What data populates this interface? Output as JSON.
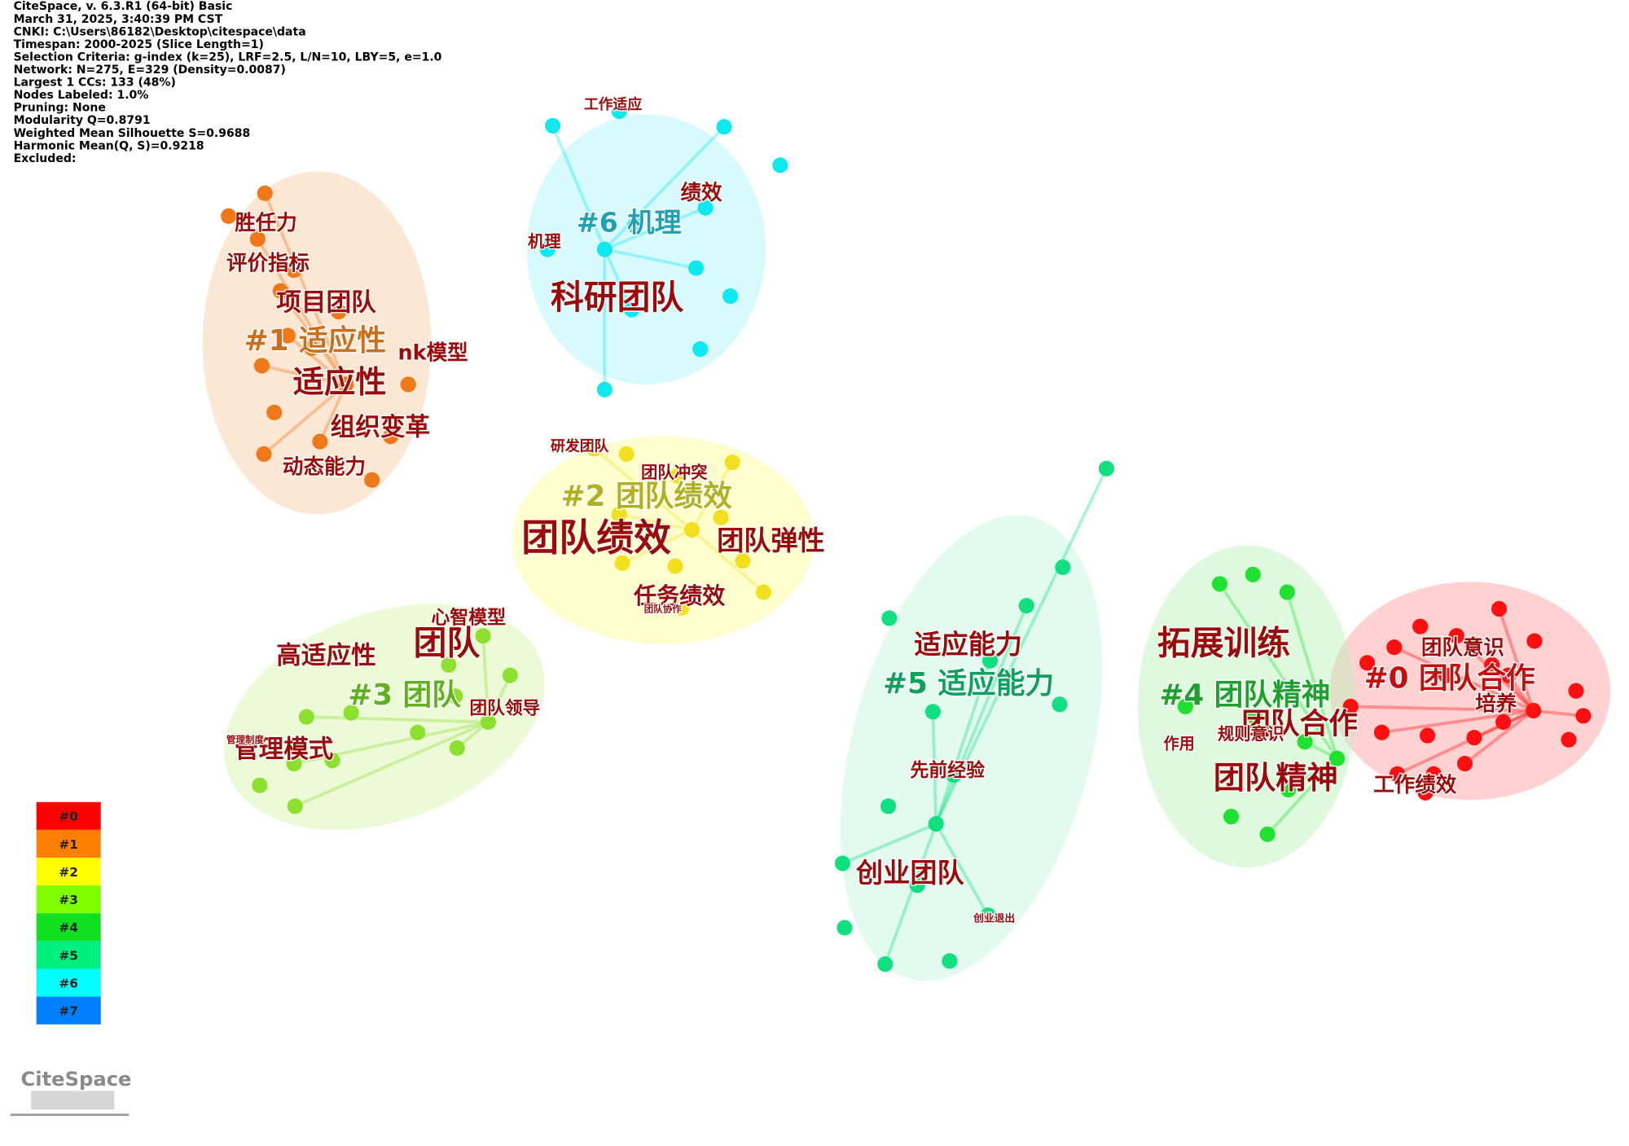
{
  "info": [
    "CiteSpace, v. 6.3.R1 (64-bit) Basic",
    "March 31, 2025, 3:40:39 PM CST",
    "CNKI: C:\\Users\\86182\\Desktop\\citespace\\data",
    "Timespan: 2000-2025 (Slice Length=1)",
    "Selection Criteria: g-index (k=25), LRF=2.5, L/N=10, LBY=5, e=1.0",
    "Network: N=275, E=329 (Density=0.0087)",
    "Largest 1 CCs: 133 (48%)",
    "Nodes Labeled: 1.0%",
    "Pruning: None",
    "Modularity Q=0.8791",
    "Weighted Mean Silhouette S=0.9688",
    "Harmonic Mean(Q, S)=0.9218",
    "Excluded:"
  ],
  "clusters": [
    {
      "label": "#0 团队合作",
      "keywords": [
        "团队意识",
        "培养",
        "工作绩效"
      ]
    },
    {
      "label": "#1 适应性",
      "keywords": [
        "胜任力",
        "评价指标",
        "项目团队",
        "nk模型",
        "适应性",
        "组织变革",
        "动态能力"
      ]
    },
    {
      "label": "#2 团队绩效",
      "keywords": [
        "研发团队",
        "团队冲突",
        "团队绩效",
        "团队弹性",
        "任务绩效",
        "团队协作"
      ]
    },
    {
      "label": "#3 团队",
      "keywords": [
        "心智模型",
        "高适应性",
        "团队",
        "团队领导",
        "管理模式",
        "管理制度"
      ]
    },
    {
      "label": "#4 团队精神",
      "keywords": [
        "拓展训练",
        "团队合作",
        "作用",
        "规则意识",
        "团队精神"
      ]
    },
    {
      "label": "#5 适应能力",
      "keywords": [
        "适应能力",
        "先前经验",
        "创业团队",
        "创业退出"
      ]
    },
    {
      "label": "#6 机理",
      "keywords": [
        "工作适应",
        "绩效",
        "机理",
        "科研团队"
      ]
    }
  ],
  "legend": [
    "#0",
    "#1",
    "#2",
    "#3",
    "#4",
    "#5",
    "#6",
    "#7"
  ],
  "logo": "CiteSpace"
}
